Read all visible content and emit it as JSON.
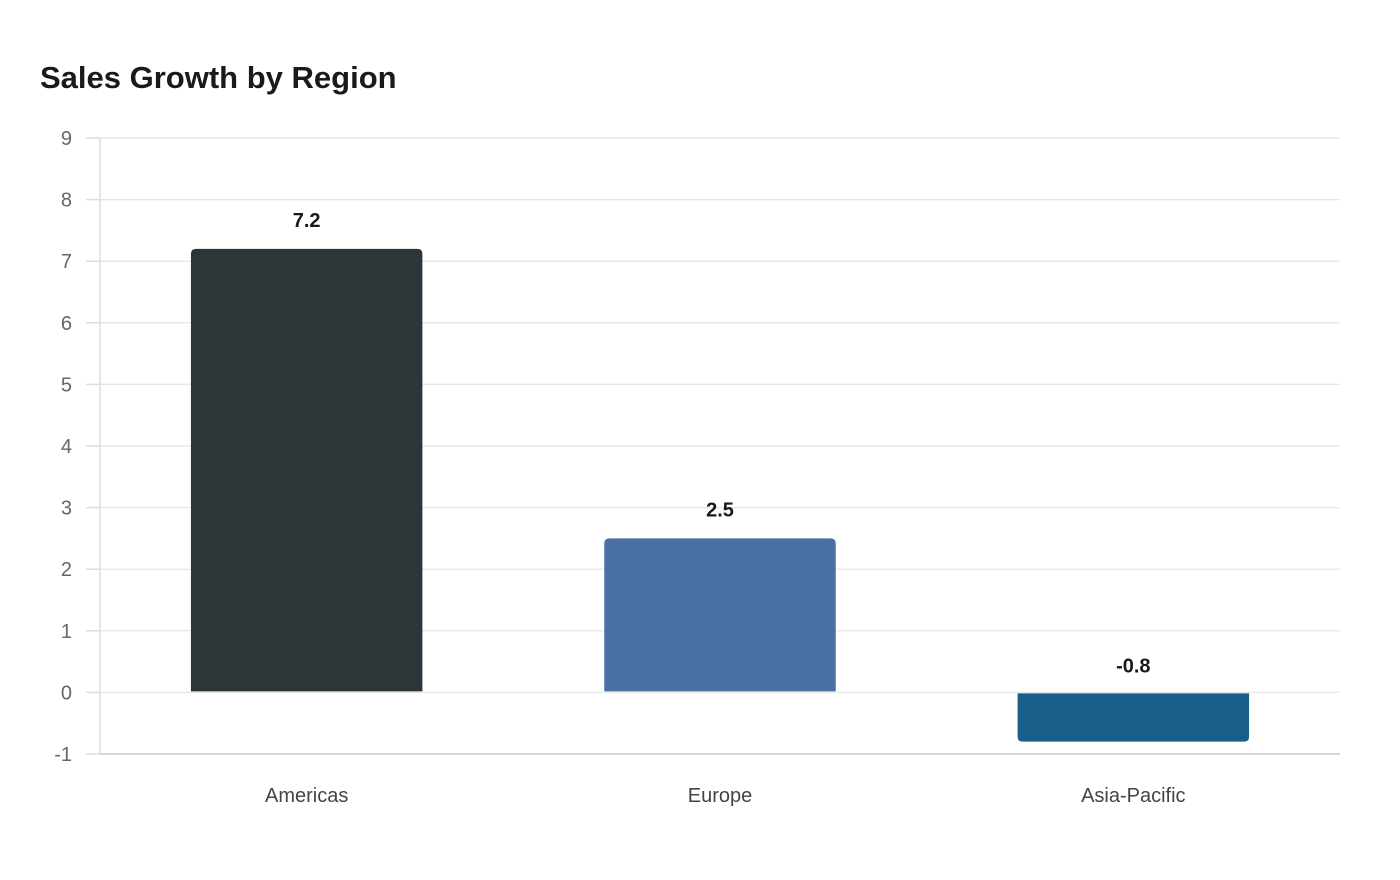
{
  "chart_data": {
    "type": "bar",
    "title": "Sales Growth by Region",
    "xlabel": "",
    "ylabel": "",
    "categories": [
      "Americas",
      "Europe",
      "Asia-Pacific"
    ],
    "values": [
      7.2,
      2.5,
      -0.8
    ],
    "data_labels": [
      "7.2",
      "2.5",
      "-0.8"
    ],
    "colors": [
      "#2e3538",
      "#4a6fa3",
      "#186089"
    ],
    "ylim": [
      -1,
      9
    ],
    "yticks": [
      -1,
      0,
      1,
      2,
      3,
      4,
      5,
      6,
      7,
      8,
      9
    ],
    "ytick_labels": [
      "-1",
      "0",
      "1",
      "2",
      "3",
      "4",
      "5",
      "6",
      "7",
      "8",
      "9"
    ],
    "grid": true,
    "legend": "none"
  }
}
